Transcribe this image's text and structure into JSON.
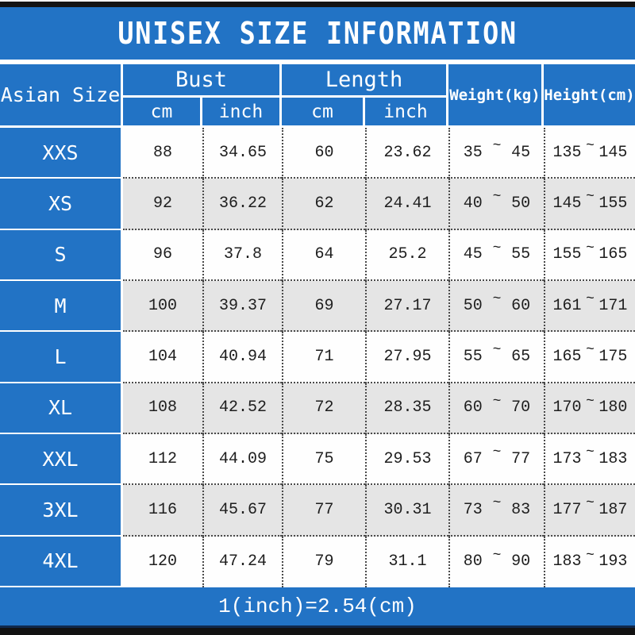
{
  "title": "UNISEX SIZE INFORMATION",
  "header": {
    "size_col": "Asian Size",
    "bust": "Bust",
    "length": "Length",
    "weight": "Weight(kg)",
    "height": "Height(cm)",
    "unit_cm": "cm",
    "unit_inch": "inch"
  },
  "range_separator": "~",
  "rows": [
    {
      "size": "XXS",
      "bust_cm": "88",
      "bust_inch": "34.65",
      "length_cm": "60",
      "length_inch": "23.62",
      "weight_min": "35",
      "weight_max": "45",
      "height_min": "135",
      "height_max": "145"
    },
    {
      "size": "XS",
      "bust_cm": "92",
      "bust_inch": "36.22",
      "length_cm": "62",
      "length_inch": "24.41",
      "weight_min": "40",
      "weight_max": "50",
      "height_min": "145",
      "height_max": "155"
    },
    {
      "size": "S",
      "bust_cm": "96",
      "bust_inch": "37.8",
      "length_cm": "64",
      "length_inch": "25.2",
      "weight_min": "45",
      "weight_max": "55",
      "height_min": "155",
      "height_max": "165"
    },
    {
      "size": "M",
      "bust_cm": "100",
      "bust_inch": "39.37",
      "length_cm": "69",
      "length_inch": "27.17",
      "weight_min": "50",
      "weight_max": "60",
      "height_min": "161",
      "height_max": "171"
    },
    {
      "size": "L",
      "bust_cm": "104",
      "bust_inch": "40.94",
      "length_cm": "71",
      "length_inch": "27.95",
      "weight_min": "55",
      "weight_max": "65",
      "height_min": "165",
      "height_max": "175"
    },
    {
      "size": "XL",
      "bust_cm": "108",
      "bust_inch": "42.52",
      "length_cm": "72",
      "length_inch": "28.35",
      "weight_min": "60",
      "weight_max": "70",
      "height_min": "170",
      "height_max": "180"
    },
    {
      "size": "XXL",
      "bust_cm": "112",
      "bust_inch": "44.09",
      "length_cm": "75",
      "length_inch": "29.53",
      "weight_min": "67",
      "weight_max": "77",
      "height_min": "173",
      "height_max": "183"
    },
    {
      "size": "3XL",
      "bust_cm": "116",
      "bust_inch": "45.67",
      "length_cm": "77",
      "length_inch": "30.31",
      "weight_min": "73",
      "weight_max": "83",
      "height_min": "177",
      "height_max": "187"
    },
    {
      "size": "4XL",
      "bust_cm": "120",
      "bust_inch": "47.24",
      "length_cm": "79",
      "length_inch": "31.1",
      "weight_min": "80",
      "weight_max": "90",
      "height_min": "183",
      "height_max": "193"
    }
  ],
  "footer": {
    "note": "1(inch)=2.54(cm)"
  },
  "colors": {
    "blue": "#2273c5",
    "bar_black": "#141414",
    "row_alt_gray": "#e5e5e5",
    "row_white": "#fefefe",
    "dotted_line": "#4a4a4a",
    "text_white": "#ffffff",
    "text_dark": "#1e1e1e"
  }
}
